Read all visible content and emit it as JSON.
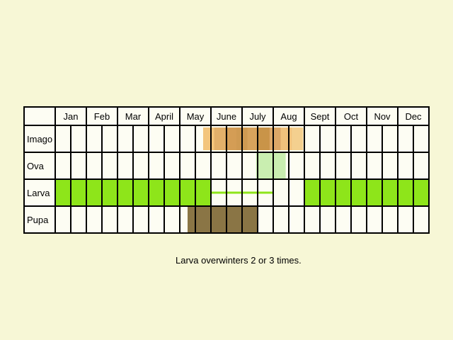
{
  "chart_data": {
    "type": "table",
    "title": "",
    "months": [
      "Jan",
      "Feb",
      "Mar",
      "April",
      "May",
      "June",
      "July",
      "Aug",
      "Sept",
      "Oct",
      "Nov",
      "Dec"
    ],
    "stages": [
      "Imago",
      "Ova",
      "Larva",
      "Pupa"
    ],
    "columns_per_month": 2,
    "bands": [
      {
        "stage": "Imago",
        "from_half_month": 9.5,
        "to_half_month": 15.9,
        "color": "#d6a15a",
        "shading": "gradient"
      },
      {
        "stage": "Ova",
        "from_half_month": 12.9,
        "to_half_month": 14.8,
        "color": "#c9eeb0"
      },
      {
        "stage": "Larva",
        "from_half_month": 0,
        "to_half_month": 10,
        "color": "#8ee51a"
      },
      {
        "stage": "Larva",
        "from_half_month": 16,
        "to_half_month": 24,
        "color": "#8ee51a"
      },
      {
        "stage": "Pupa",
        "from_half_month": 8.5,
        "to_half_month": 13,
        "color": "#8a7545"
      }
    ],
    "larva_line": {
      "from_half_month": 10,
      "to_half_month": 14,
      "color": "#8ee51a"
    }
  },
  "note": "Larva overwinters 2 or 3 times.",
  "colors": {
    "background": "#f7f7d6",
    "cell": "#fdfdf3",
    "grid": "#000000"
  }
}
